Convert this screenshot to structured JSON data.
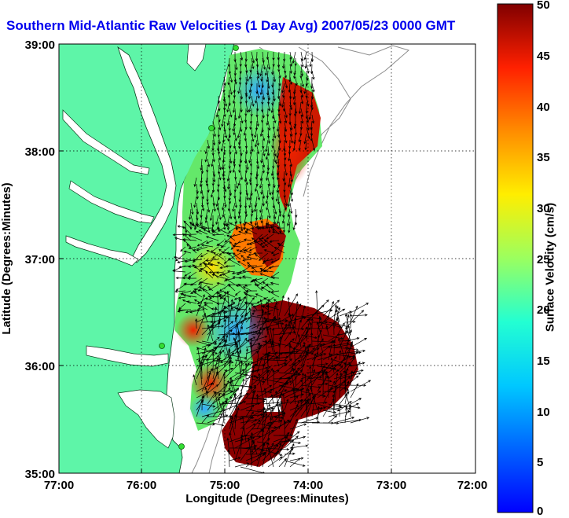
{
  "title": "Southern Mid-Atlantic Raw Velocities (1 Day Avg) 2007/05/23 0000 GMT",
  "xaxis": {
    "label": "Longitude (Degrees:Minutes)",
    "ticks": [
      "77:00",
      "76:00",
      "75:00",
      "74:00",
      "73:00",
      "72:00"
    ],
    "lon_range": [
      -77,
      -72
    ]
  },
  "yaxis": {
    "label": "Latitude (Degrees:Minutes)",
    "ticks": [
      "39:00",
      "38:00",
      "37:00",
      "36:00",
      "35:00"
    ],
    "lat_range": [
      35,
      39
    ]
  },
  "grid": "dotted",
  "colorbar": {
    "title": "Surface Velocity (cm/s)",
    "range": [
      0,
      50
    ],
    "ticks": [
      "50",
      "45",
      "40",
      "35",
      "30",
      "25",
      "20",
      "15",
      "10",
      "5",
      "0"
    ],
    "colormap": "jet"
  },
  "colors": {
    "title": "#0000ee",
    "land": "#5ef5a8",
    "water": "#ffffff",
    "bathymetry": "#8c8c8c",
    "station": "#33dd33"
  }
}
